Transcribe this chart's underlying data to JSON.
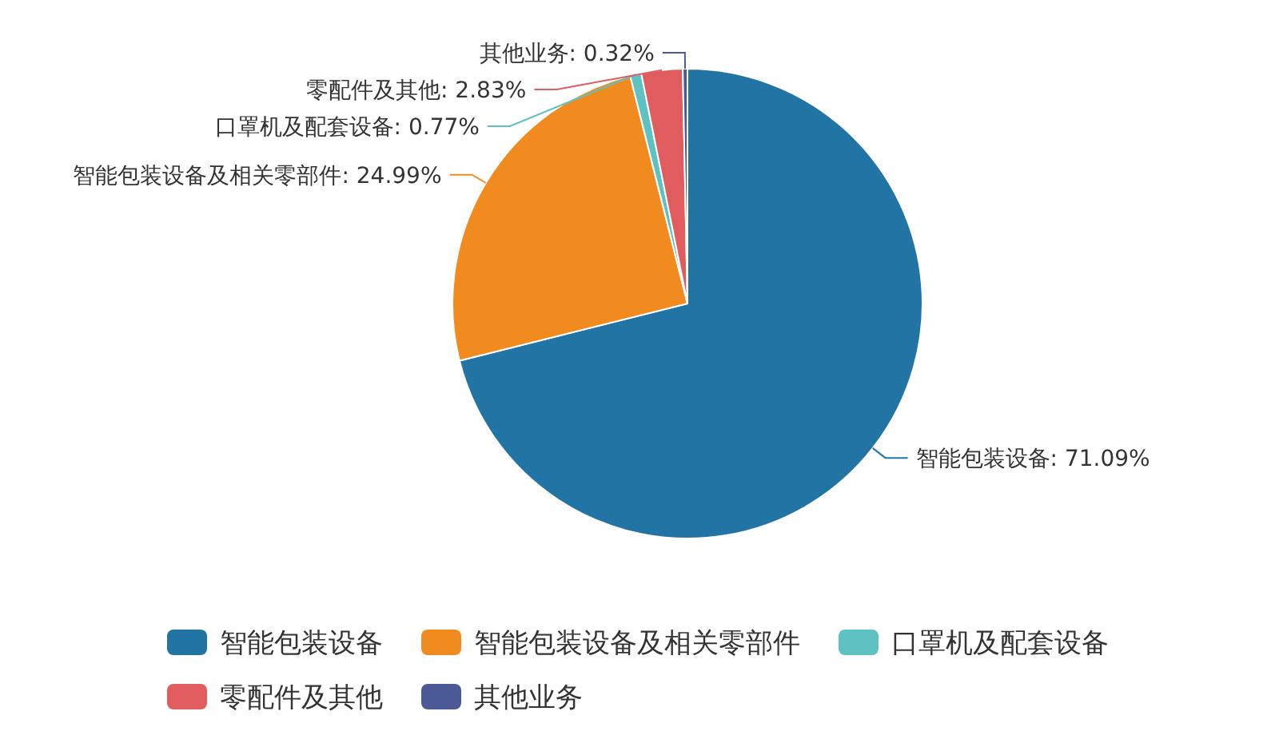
{
  "chart_data": {
    "type": "pie",
    "categories": [
      "智能包装设备",
      "智能包装设备及相关零部件",
      "口罩机及配套设备",
      "零配件及其他",
      "其他业务"
    ],
    "values": [
      71.09,
      24.99,
      0.77,
      2.83,
      0.32
    ],
    "value_labels": [
      "智能包装设备: 71.09%",
      "智能包装设备及相关零部件: 24.99%",
      "口罩机及配套设备: 0.77%",
      "零配件及其他: 2.83%",
      "其他业务: 0.32%"
    ],
    "colors": [
      "#2274a5",
      "#f28b1f",
      "#5ec2c1",
      "#e15c5f",
      "#4b5a97"
    ],
    "legend": "bottom"
  }
}
